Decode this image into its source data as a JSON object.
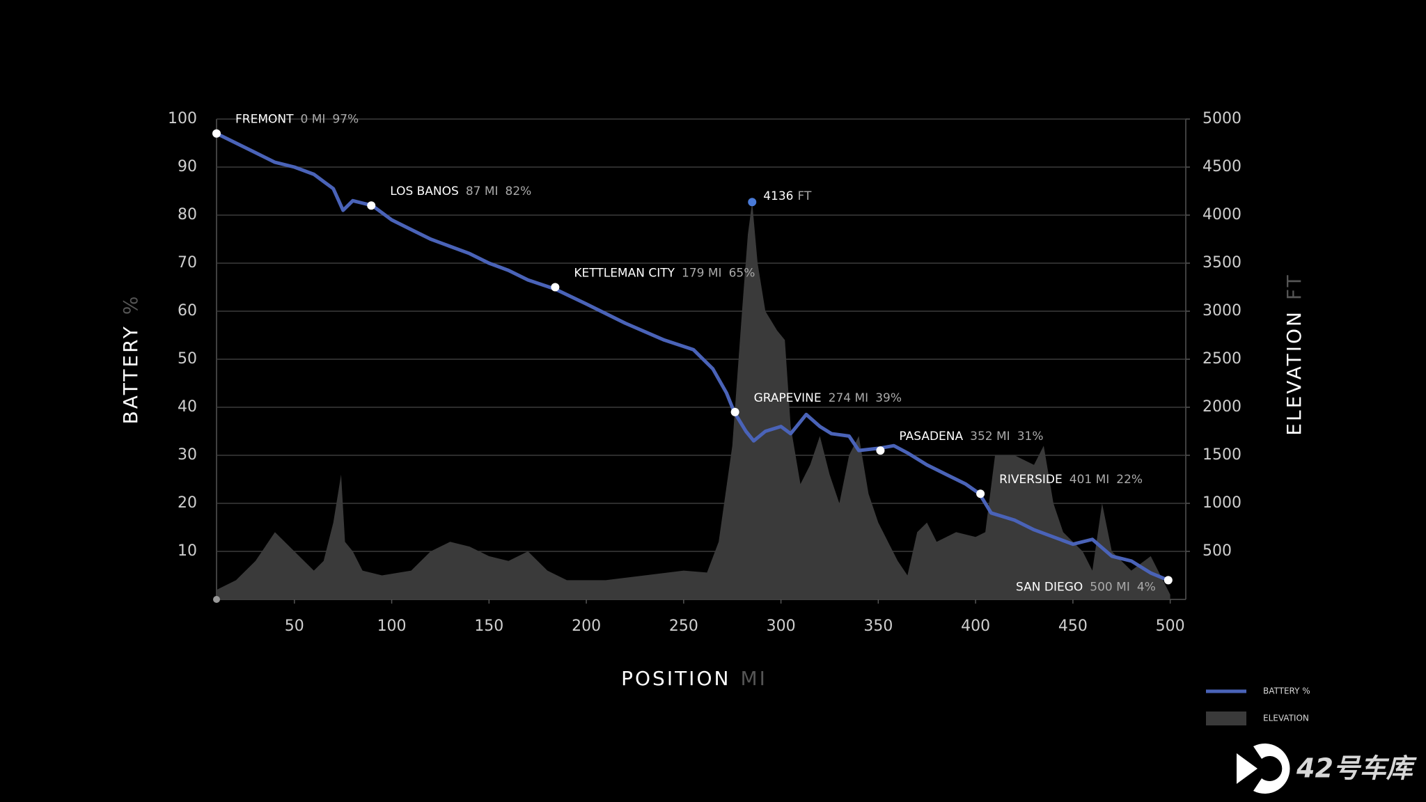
{
  "chart_data": {
    "type": "line",
    "xlabel": "POSITION",
    "xunit": "MI",
    "ylabel": "BATTERY",
    "yunit": "%",
    "y2label": "ELEVATION",
    "y2unit": "FT",
    "xlim": [
      10,
      508
    ],
    "xticks": [
      50,
      100,
      150,
      200,
      250,
      300,
      350,
      400,
      450,
      500
    ],
    "ylim": [
      0,
      100
    ],
    "yticks": [
      10,
      20,
      30,
      40,
      50,
      60,
      70,
      80,
      90,
      100
    ],
    "y2lim": [
      0,
      5000
    ],
    "y2ticks": [
      500,
      1000,
      1500,
      2000,
      2500,
      3000,
      3500,
      4000,
      4500,
      5000
    ],
    "grid": true,
    "legend": "bottom-right",
    "series": [
      {
        "name": "ELEVATION",
        "type": "area",
        "axis": "y2",
        "color": "#3a3a3a",
        "x": [
          10,
          20,
          30,
          40,
          50,
          60,
          65,
          70,
          74,
          76,
          80,
          85,
          95,
          110,
          120,
          130,
          140,
          150,
          160,
          170,
          180,
          190,
          210,
          230,
          250,
          262,
          268,
          275,
          280,
          283,
          285.2,
          288,
          292,
          298,
          302,
          305,
          310,
          315,
          320,
          325,
          330,
          335,
          340,
          345,
          350,
          355,
          360,
          365,
          370,
          375,
          380,
          390,
          400,
          405,
          410,
          420,
          430,
          435,
          440,
          445,
          450,
          455,
          460,
          465,
          470,
          480,
          490,
          500
        ],
        "values": [
          100,
          200,
          400,
          700,
          500,
          300,
          400,
          800,
          1300,
          600,
          500,
          300,
          250,
          300,
          500,
          600,
          550,
          450,
          400,
          500,
          300,
          200,
          200,
          250,
          300,
          280,
          600,
          1600,
          3000,
          3800,
          4136,
          3500,
          3000,
          2800,
          2700,
          1800,
          1200,
          1400,
          1700,
          1300,
          1000,
          1500,
          1700,
          1100,
          800,
          600,
          400,
          250,
          700,
          800,
          600,
          700,
          650,
          700,
          1500,
          1500,
          1400,
          1600,
          1000,
          700,
          600,
          500,
          300,
          1000,
          500,
          300,
          450,
          50
        ]
      },
      {
        "name": "BATTERY %",
        "type": "line",
        "color": "#4a63b8",
        "x": [
          10,
          20,
          30,
          40,
          50,
          60,
          65,
          70,
          75,
          80,
          85,
          90,
          100,
          110,
          120,
          130,
          140,
          150,
          160,
          170,
          184,
          200,
          220,
          240,
          255,
          265,
          272,
          276,
          282,
          286,
          292,
          300,
          305,
          313,
          320,
          326,
          335,
          340,
          351,
          358,
          365,
          375,
          385,
          395,
          402,
          408,
          420,
          430,
          440,
          450,
          460,
          470,
          480,
          490,
          499
        ],
        "values": [
          97,
          95,
          93,
          91,
          90,
          88.5,
          87,
          85.5,
          81,
          83,
          82.5,
          82,
          79,
          77,
          75,
          73.5,
          72,
          70,
          68.5,
          66.5,
          64.6,
          61.5,
          57.5,
          54,
          52,
          48,
          43,
          39,
          35,
          33,
          35,
          36,
          34.5,
          38.5,
          36,
          34.5,
          34,
          31,
          31.5,
          32,
          30.5,
          28,
          26,
          24,
          22,
          18,
          16.5,
          14.5,
          13,
          11.5,
          12.5,
          9,
          8,
          5.5,
          4
        ]
      }
    ],
    "annotations": [
      {
        "name": "FREMONT",
        "x": 10,
        "distance": 0,
        "distance_label": "0 MI",
        "y": 97,
        "y_label": "97%"
      },
      {
        "name": "LOS BANOS",
        "x": 89.5,
        "distance": 87,
        "distance_label": "87 MI",
        "y": 82,
        "y_label": "82%"
      },
      {
        "name": "KETTLEMAN CITY",
        "x": 184,
        "distance": 179,
        "distance_label": "179 MI",
        "y": 65,
        "y_label": "65%"
      },
      {
        "name": "GRAPEVINE",
        "x": 276.4,
        "distance": 274,
        "distance_label": "274 MI",
        "y": 39,
        "y_label": "39%"
      },
      {
        "name": "PASADENA",
        "x": 351.1,
        "distance": 352,
        "distance_label": "352 MI",
        "y": 31,
        "y_label": "31%"
      },
      {
        "name": "RIVERSIDE",
        "x": 402.5,
        "distance": 401,
        "distance_label": "401 MI",
        "y": 22,
        "y_label": "22%"
      },
      {
        "name": "SAN DIEGO",
        "x": 499,
        "distance": 500,
        "distance_label": "500 MI",
        "y": 4,
        "y_label": "4%"
      }
    ],
    "peak": {
      "x": 285.2,
      "value": 4136,
      "unit": "FT"
    },
    "watermark": "42号车库"
  }
}
